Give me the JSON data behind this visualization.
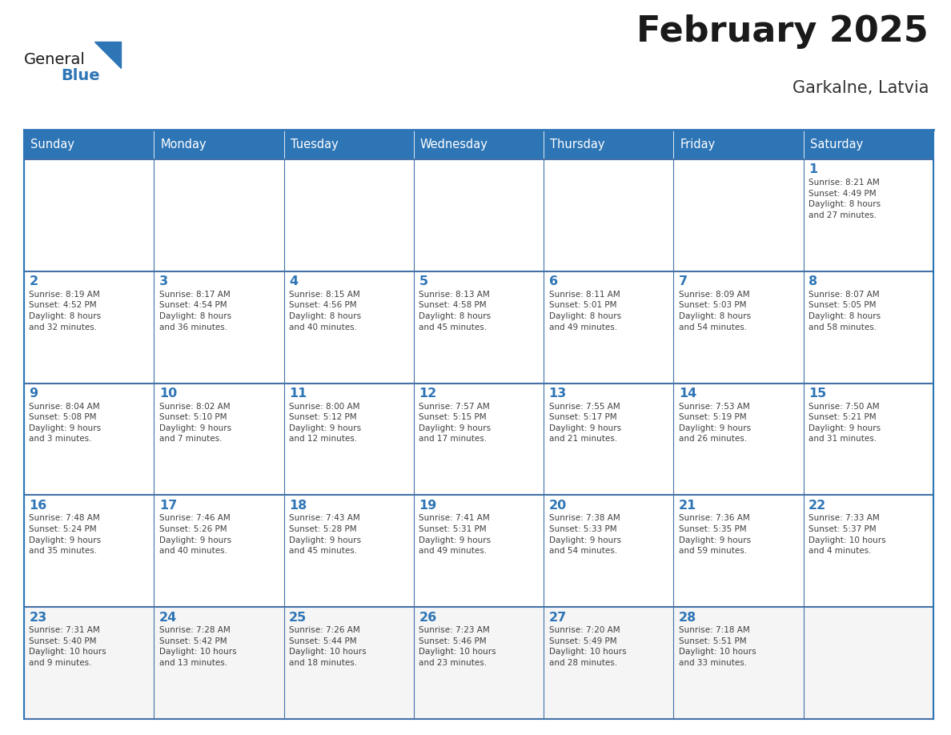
{
  "title": "February 2025",
  "subtitle": "Garkalne, Latvia",
  "days_of_week": [
    "Sunday",
    "Monday",
    "Tuesday",
    "Wednesday",
    "Thursday",
    "Friday",
    "Saturday"
  ],
  "header_bg": "#2E75B6",
  "header_text": "#FFFFFF",
  "cell_bg": "#FFFFFF",
  "cell_bg_last": "#F5F5F5",
  "cell_border": "#4472A8",
  "cell_border_week": "#4472A8",
  "text_color": "#404040",
  "day_number_color": "#2E75B6",
  "title_color": "#1a1a1a",
  "subtitle_color": "#333333",
  "logo_general_color": "#1a1a1a",
  "logo_blue_color": "#2E75B6",
  "weeks": [
    [
      {
        "day": null,
        "info": null
      },
      {
        "day": null,
        "info": null
      },
      {
        "day": null,
        "info": null
      },
      {
        "day": null,
        "info": null
      },
      {
        "day": null,
        "info": null
      },
      {
        "day": null,
        "info": null
      },
      {
        "day": 1,
        "info": "Sunrise: 8:21 AM\nSunset: 4:49 PM\nDaylight: 8 hours\nand 27 minutes."
      }
    ],
    [
      {
        "day": 2,
        "info": "Sunrise: 8:19 AM\nSunset: 4:52 PM\nDaylight: 8 hours\nand 32 minutes."
      },
      {
        "day": 3,
        "info": "Sunrise: 8:17 AM\nSunset: 4:54 PM\nDaylight: 8 hours\nand 36 minutes."
      },
      {
        "day": 4,
        "info": "Sunrise: 8:15 AM\nSunset: 4:56 PM\nDaylight: 8 hours\nand 40 minutes."
      },
      {
        "day": 5,
        "info": "Sunrise: 8:13 AM\nSunset: 4:58 PM\nDaylight: 8 hours\nand 45 minutes."
      },
      {
        "day": 6,
        "info": "Sunrise: 8:11 AM\nSunset: 5:01 PM\nDaylight: 8 hours\nand 49 minutes."
      },
      {
        "day": 7,
        "info": "Sunrise: 8:09 AM\nSunset: 5:03 PM\nDaylight: 8 hours\nand 54 minutes."
      },
      {
        "day": 8,
        "info": "Sunrise: 8:07 AM\nSunset: 5:05 PM\nDaylight: 8 hours\nand 58 minutes."
      }
    ],
    [
      {
        "day": 9,
        "info": "Sunrise: 8:04 AM\nSunset: 5:08 PM\nDaylight: 9 hours\nand 3 minutes."
      },
      {
        "day": 10,
        "info": "Sunrise: 8:02 AM\nSunset: 5:10 PM\nDaylight: 9 hours\nand 7 minutes."
      },
      {
        "day": 11,
        "info": "Sunrise: 8:00 AM\nSunset: 5:12 PM\nDaylight: 9 hours\nand 12 minutes."
      },
      {
        "day": 12,
        "info": "Sunrise: 7:57 AM\nSunset: 5:15 PM\nDaylight: 9 hours\nand 17 minutes."
      },
      {
        "day": 13,
        "info": "Sunrise: 7:55 AM\nSunset: 5:17 PM\nDaylight: 9 hours\nand 21 minutes."
      },
      {
        "day": 14,
        "info": "Sunrise: 7:53 AM\nSunset: 5:19 PM\nDaylight: 9 hours\nand 26 minutes."
      },
      {
        "day": 15,
        "info": "Sunrise: 7:50 AM\nSunset: 5:21 PM\nDaylight: 9 hours\nand 31 minutes."
      }
    ],
    [
      {
        "day": 16,
        "info": "Sunrise: 7:48 AM\nSunset: 5:24 PM\nDaylight: 9 hours\nand 35 minutes."
      },
      {
        "day": 17,
        "info": "Sunrise: 7:46 AM\nSunset: 5:26 PM\nDaylight: 9 hours\nand 40 minutes."
      },
      {
        "day": 18,
        "info": "Sunrise: 7:43 AM\nSunset: 5:28 PM\nDaylight: 9 hours\nand 45 minutes."
      },
      {
        "day": 19,
        "info": "Sunrise: 7:41 AM\nSunset: 5:31 PM\nDaylight: 9 hours\nand 49 minutes."
      },
      {
        "day": 20,
        "info": "Sunrise: 7:38 AM\nSunset: 5:33 PM\nDaylight: 9 hours\nand 54 minutes."
      },
      {
        "day": 21,
        "info": "Sunrise: 7:36 AM\nSunset: 5:35 PM\nDaylight: 9 hours\nand 59 minutes."
      },
      {
        "day": 22,
        "info": "Sunrise: 7:33 AM\nSunset: 5:37 PM\nDaylight: 10 hours\nand 4 minutes."
      }
    ],
    [
      {
        "day": 23,
        "info": "Sunrise: 7:31 AM\nSunset: 5:40 PM\nDaylight: 10 hours\nand 9 minutes."
      },
      {
        "day": 24,
        "info": "Sunrise: 7:28 AM\nSunset: 5:42 PM\nDaylight: 10 hours\nand 13 minutes."
      },
      {
        "day": 25,
        "info": "Sunrise: 7:26 AM\nSunset: 5:44 PM\nDaylight: 10 hours\nand 18 minutes."
      },
      {
        "day": 26,
        "info": "Sunrise: 7:23 AM\nSunset: 5:46 PM\nDaylight: 10 hours\nand 23 minutes."
      },
      {
        "day": 27,
        "info": "Sunrise: 7:20 AM\nSunset: 5:49 PM\nDaylight: 10 hours\nand 28 minutes."
      },
      {
        "day": 28,
        "info": "Sunrise: 7:18 AM\nSunset: 5:51 PM\nDaylight: 10 hours\nand 33 minutes."
      },
      {
        "day": null,
        "info": null
      }
    ]
  ]
}
